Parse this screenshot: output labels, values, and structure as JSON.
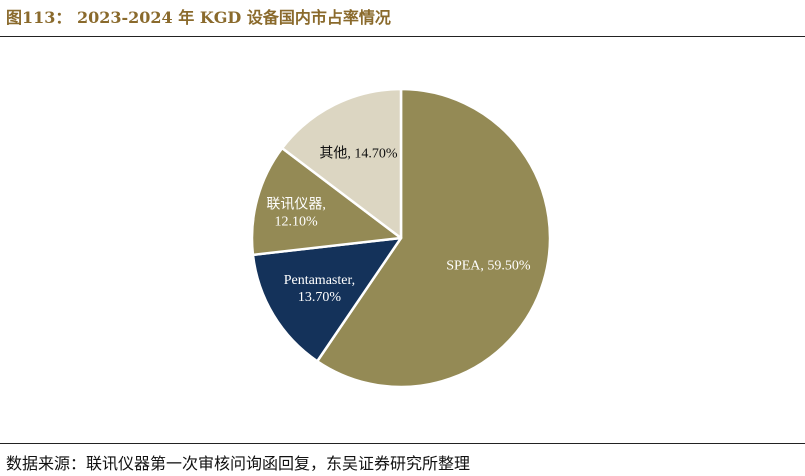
{
  "header": {
    "title": "图113： 2023-2024 年 KGD 设备国内市占率情况"
  },
  "footer": {
    "source": "数据来源：联讯仪器第一次审核问询函回复，东吴证券研究所整理"
  },
  "colors": {
    "title": "#8a6a2c",
    "SPEA": "#948a55",
    "Pentamaster": "#14325a",
    "lianxun": "#948a55",
    "other": "#dcd6c2"
  },
  "chart_data": {
    "type": "pie",
    "title": "",
    "slices": [
      {
        "name": "SPEA",
        "value": 59.5,
        "label_lines": [
          "SPEA, 59.50%"
        ],
        "color": "#948a55",
        "label_color": "#ffffff"
      },
      {
        "name": "Pentamaster",
        "value": 13.7,
        "label_lines": [
          "Pentamaster,",
          "13.70%"
        ],
        "color": "#14325a",
        "label_color": "#ffffff"
      },
      {
        "name": "联讯仪器",
        "value": 12.1,
        "label_lines": [
          "联讯仪器,",
          "12.10%"
        ],
        "color": "#948a55",
        "label_color": "#ffffff"
      },
      {
        "name": "其他",
        "value": 14.7,
        "label_lines": [
          "其他, 14.70%"
        ],
        "color": "#dcd6c2",
        "label_color": "#111111"
      }
    ]
  }
}
